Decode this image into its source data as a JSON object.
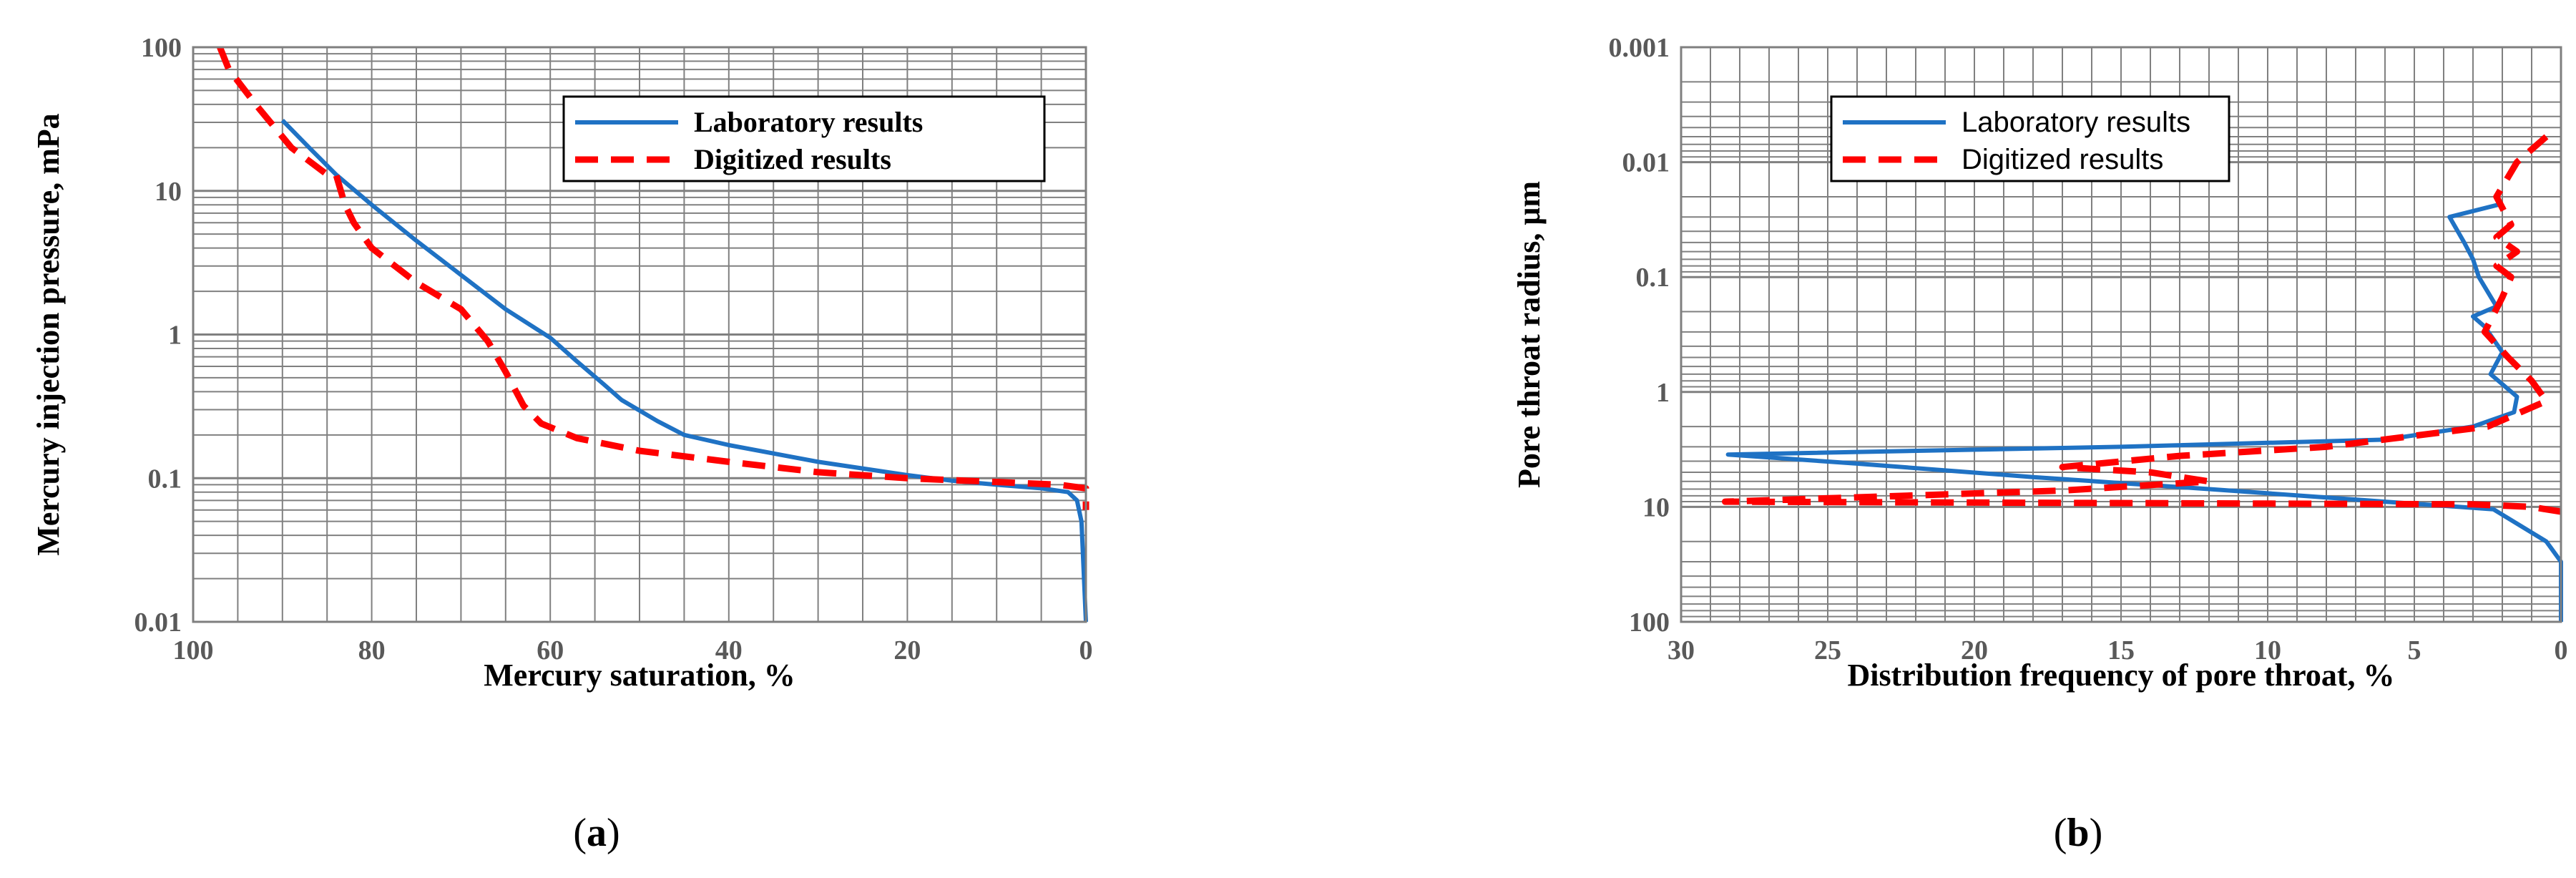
{
  "colors": {
    "lab": "#1f72c4",
    "digitized": "#ff0000",
    "grid": "#808080",
    "axis": "#7f7f7f"
  },
  "chart_data": [
    {
      "id": "a",
      "type": "line",
      "panel_label": "(a)",
      "panel_letter": "a",
      "xlabel": "Mercury saturation, %",
      "ylabel": "Mercury injection pressure, mPa",
      "xlim": [
        100,
        0
      ],
      "ylim": [
        0.01,
        100
      ],
      "y_scale": "log",
      "x_ticks": [
        "100",
        "80",
        "60",
        "40",
        "20",
        "0"
      ],
      "y_ticks": [
        "100",
        "10",
        "1",
        "0.1",
        "0.01"
      ],
      "grid": true,
      "legend": {
        "placement": "top-right",
        "entries": [
          "Laboratory results",
          "Digitized results"
        ]
      },
      "series": [
        {
          "name": "Laboratory results",
          "style": "solid",
          "points": [
            [
              90,
              31
            ],
            [
              87,
              20
            ],
            [
              84,
              13
            ],
            [
              80,
              8
            ],
            [
              75,
              4.5
            ],
            [
              70,
              2.6
            ],
            [
              65,
              1.5
            ],
            [
              60,
              0.95
            ],
            [
              57,
              0.65
            ],
            [
              54,
              0.45
            ],
            [
              52,
              0.35
            ],
            [
              48,
              0.25
            ],
            [
              45,
              0.2
            ],
            [
              40,
              0.17
            ],
            [
              30,
              0.13
            ],
            [
              20,
              0.105
            ],
            [
              15,
              0.096
            ],
            [
              10,
              0.09
            ],
            [
              5,
              0.085
            ],
            [
              2,
              0.08
            ],
            [
              1,
              0.07
            ],
            [
              0.5,
              0.05
            ],
            [
              0,
              0.01
            ]
          ]
        },
        {
          "name": "Digitized results",
          "style": "dashed",
          "points": [
            [
              97,
              100
            ],
            [
              96,
              70
            ],
            [
              93,
              40
            ],
            [
              89,
              20
            ],
            [
              85,
              13
            ],
            [
              84,
              13
            ],
            [
              83,
              8
            ],
            [
              82,
              6
            ],
            [
              80,
              4
            ],
            [
              75,
              2.3
            ],
            [
              70,
              1.5
            ],
            [
              67,
              0.9
            ],
            [
              65,
              0.55
            ],
            [
              63,
              0.32
            ],
            [
              61,
              0.24
            ],
            [
              57,
              0.19
            ],
            [
              50,
              0.155
            ],
            [
              40,
              0.13
            ],
            [
              30,
              0.11
            ],
            [
              20,
              0.1
            ],
            [
              10,
              0.094
            ],
            [
              3,
              0.09
            ],
            [
              0,
              0.085
            ],
            [
              0,
              0.06
            ]
          ]
        }
      ]
    },
    {
      "id": "b",
      "type": "line",
      "panel_label": "(b)",
      "panel_letter": "b",
      "xlabel": "Distribution frequency of pore throat, %",
      "ylabel": "Pore throat radius, μm",
      "xlim": [
        30,
        0
      ],
      "ylim": [
        0.001,
        100
      ],
      "y_scale": "log",
      "y_inverted": true,
      "x_ticks": [
        "30",
        "25",
        "20",
        "15",
        "10",
        "5",
        "0"
      ],
      "y_ticks": [
        "0.001",
        "0.01",
        "0.1",
        "1",
        "10",
        "100"
      ],
      "grid": true,
      "legend": {
        "placement": "top-center",
        "entries": [
          "Laboratory results",
          "Digitized results"
        ]
      },
      "series": [
        {
          "name": "Laboratory results",
          "style": "solid",
          "points": [
            [
              2.0,
              0.023
            ],
            [
              3.8,
              0.03
            ],
            [
              3.3,
              0.05
            ],
            [
              3.0,
              0.07
            ],
            [
              2.8,
              0.1
            ],
            [
              2.2,
              0.18
            ],
            [
              3.0,
              0.22
            ],
            [
              2.6,
              0.27
            ],
            [
              2.0,
              0.45
            ],
            [
              2.4,
              0.7
            ],
            [
              1.5,
              1.1
            ],
            [
              1.6,
              1.5
            ],
            [
              3.0,
              2.0
            ],
            [
              6.0,
              2.6
            ],
            [
              15,
              3.0
            ],
            [
              28.4,
              3.5
            ],
            [
              24,
              4.2
            ],
            [
              18,
              5.5
            ],
            [
              12,
              7.0
            ],
            [
              6,
              9.0
            ],
            [
              2.3,
              10.5
            ],
            [
              0.5,
              20
            ],
            [
              0.0,
              30
            ],
            [
              0.0,
              100
            ]
          ]
        },
        {
          "name": "Digitized results",
          "style": "dashed",
          "points": [
            [
              0.5,
              0.006
            ],
            [
              1.5,
              0.01
            ],
            [
              2.2,
              0.02
            ],
            [
              1.7,
              0.035
            ],
            [
              2.2,
              0.045
            ],
            [
              1.5,
              0.06
            ],
            [
              2.2,
              0.08
            ],
            [
              1.7,
              0.1
            ],
            [
              2.0,
              0.15
            ],
            [
              2.6,
              0.3
            ],
            [
              1.8,
              0.5
            ],
            [
              1.0,
              0.8
            ],
            [
              0.5,
              1.2
            ],
            [
              2.5,
              2.0
            ],
            [
              8.0,
              3.0
            ],
            [
              13,
              3.6
            ],
            [
              17,
              4.5
            ],
            [
              14,
              5.0
            ],
            [
              12,
              6.0
            ],
            [
              17,
              7.2
            ],
            [
              28.5,
              9.0
            ],
            [
              3,
              9.5
            ],
            [
              1.0,
              10
            ],
            [
              0.5,
              10.5
            ],
            [
              0.0,
              11
            ]
          ]
        }
      ]
    }
  ]
}
